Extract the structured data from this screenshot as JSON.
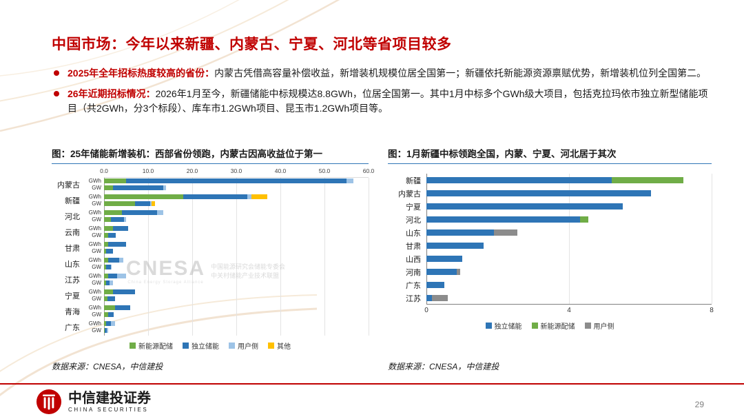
{
  "slide": {
    "title": "中国市场：今年以来新疆、内蒙古、宁夏、河北等省项目较多",
    "bullets": [
      {
        "lead": "2025年全年招标热度较高的省份：",
        "text": "内蒙古凭借高容量补偿收益，新增装机规模位居全国第一；新疆依托新能源资源禀赋优势，新增装机位列全国第二。"
      },
      {
        "lead": "26年近期招标情况：",
        "text": "2026年1月至今，新疆储能中标规模达8.8GWh，位居全国第一。其中1月中标多个GWh级大项目，包括克拉玛依市独立新型储能项目（共2GWh，分3个标段）、库车市1.2GWh项目、昆玉市1.2GWh项目等。"
      }
    ],
    "sources_left": "数据来源：CNESA，中信建投",
    "sources_right": "数据来源：CNESA，中信建投",
    "page_number": "29",
    "logo": {
      "cn": "中信建投证券",
      "en": "CHINA SECURITIES"
    },
    "colors": {
      "accent_red": "#C00000",
      "chart_blue": "#2E75B6",
      "chart_green": "#70AD47",
      "chart_lightblue": "#9DC3E6",
      "chart_yellow": "#FFC000",
      "chart_gray": "#8C8C8C"
    }
  },
  "watermark": {
    "main": "CNESA",
    "sub": "China Energy Storage Alliance",
    "line1": "中国能源研究会储能专委会",
    "line2": "中关村储能产业技术联盟"
  },
  "chart_data": [
    {
      "type": "bar",
      "orientation": "horizontal",
      "stacked": true,
      "title": "图：25年储能新增装机：西部省份领跑，内蒙古因高收益位于第一",
      "xlim": [
        0,
        60
      ],
      "xticks": [
        0,
        10,
        20,
        30,
        40,
        50,
        60
      ],
      "xtick_labels": [
        "0.0",
        "10.0",
        "20.0",
        "30.0",
        "40.0",
        "50.0",
        "60.0"
      ],
      "legend": [
        {
          "name": "新能源配储",
          "color": "#70AD47"
        },
        {
          "name": "独立储能",
          "color": "#2E75B6"
        },
        {
          "name": "用户侧",
          "color": "#9DC3E6"
        },
        {
          "name": "其他",
          "color": "#FFC000"
        }
      ],
      "legend_position": "bottom",
      "grid": true,
      "groups": [
        {
          "category": "内蒙古",
          "bars": [
            {
              "unit": "GWh",
              "values": [
                5,
                50,
                1.5,
                0
              ]
            },
            {
              "unit": "GW",
              "values": [
                2,
                11.5,
                0.5,
                0
              ]
            }
          ]
        },
        {
          "category": "新疆",
          "bars": [
            {
              "unit": "GWh",
              "values": [
                18,
                14.5,
                1,
                3.5
              ]
            },
            {
              "unit": "GW",
              "values": [
                7,
                3.5,
                0.3,
                0.8
              ]
            }
          ]
        },
        {
          "category": "河北",
          "bars": [
            {
              "unit": "GWh",
              "values": [
                4,
                8,
                1.5,
                0
              ]
            },
            {
              "unit": "GW",
              "values": [
                1.5,
                3,
                0.5,
                0
              ]
            }
          ]
        },
        {
          "category": "云南",
          "bars": [
            {
              "unit": "GWh",
              "values": [
                2,
                3.5,
                0,
                0
              ]
            },
            {
              "unit": "GW",
              "values": [
                1,
                1.6,
                0,
                0
              ]
            }
          ]
        },
        {
          "category": "甘肃",
          "bars": [
            {
              "unit": "GWh",
              "values": [
                1,
                4,
                0,
                0
              ]
            },
            {
              "unit": "GW",
              "values": [
                0.5,
                1.5,
                0,
                0
              ]
            }
          ]
        },
        {
          "category": "山东",
          "bars": [
            {
              "unit": "GWh",
              "values": [
                1,
                2.5,
                0.8,
                0
              ]
            },
            {
              "unit": "GW",
              "values": [
                0.5,
                1,
                0.3,
                0
              ]
            }
          ]
        },
        {
          "category": "江苏",
          "bars": [
            {
              "unit": "GWh",
              "values": [
                1,
                2,
                2,
                0
              ]
            },
            {
              "unit": "GW",
              "values": [
                0.4,
                0.8,
                0.8,
                0
              ]
            }
          ]
        },
        {
          "category": "宁夏",
          "bars": [
            {
              "unit": "GWh",
              "values": [
                2,
                5,
                0,
                0
              ]
            },
            {
              "unit": "GW",
              "values": [
                0.8,
                1.7,
                0,
                0
              ]
            }
          ]
        },
        {
          "category": "青海",
          "bars": [
            {
              "unit": "GWh",
              "values": [
                2.5,
                3.5,
                0,
                0
              ]
            },
            {
              "unit": "GW",
              "values": [
                1,
                1.2,
                0,
                0
              ]
            }
          ]
        },
        {
          "category": "广东",
          "bars": [
            {
              "unit": "GWh",
              "values": [
                0.5,
                1,
                1,
                0
              ]
            },
            {
              "unit": "GW",
              "values": [
                0.2,
                0.4,
                0.4,
                0
              ]
            }
          ]
        }
      ]
    },
    {
      "type": "bar",
      "orientation": "horizontal",
      "stacked": true,
      "title": "图：1月新疆中标领跑全国，内蒙、宁夏、河北居于其次",
      "xlim": [
        0,
        8
      ],
      "xticks": [
        0,
        4,
        8
      ],
      "xtick_labels": [
        "0",
        "4",
        "8"
      ],
      "legend": [
        {
          "name": "独立储能",
          "color": "#2E75B6"
        },
        {
          "name": "新能源配储",
          "color": "#70AD47"
        },
        {
          "name": "用户侧",
          "color": "#8C8C8C"
        }
      ],
      "legend_position": "bottom",
      "grid": true,
      "groups": [
        {
          "category": "新疆",
          "values": [
            5.2,
            2.0,
            0
          ]
        },
        {
          "category": "内蒙古",
          "values": [
            6.3,
            0,
            0
          ]
        },
        {
          "category": "宁夏",
          "values": [
            5.5,
            0,
            0
          ]
        },
        {
          "category": "河北",
          "values": [
            4.3,
            0.25,
            0
          ]
        },
        {
          "category": "山东",
          "values": [
            1.9,
            0,
            0.65
          ]
        },
        {
          "category": "甘肃",
          "values": [
            1.6,
            0,
            0
          ]
        },
        {
          "category": "山西",
          "values": [
            1.0,
            0,
            0
          ]
        },
        {
          "category": "河南",
          "values": [
            0.85,
            0,
            0.1
          ]
        },
        {
          "category": "广东",
          "values": [
            0.5,
            0,
            0
          ]
        },
        {
          "category": "江苏",
          "values": [
            0.15,
            0,
            0.45
          ]
        }
      ]
    }
  ]
}
